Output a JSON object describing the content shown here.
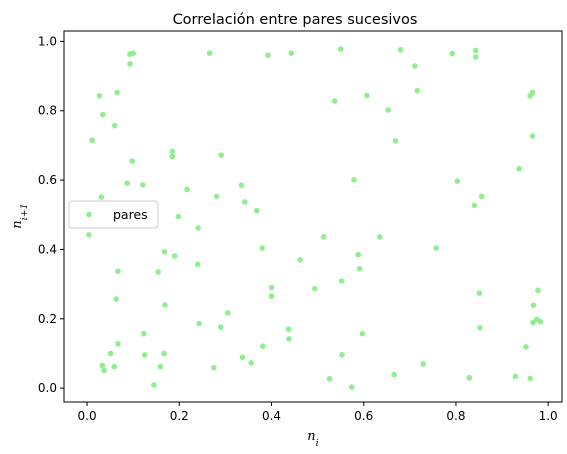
{
  "chart_data": {
    "type": "scatter",
    "title": "Correlación entre pares sucesivos",
    "xlabel": "n_i",
    "ylabel": "n_{i+1}",
    "xlim": [
      -0.05,
      1.03
    ],
    "ylim": [
      -0.04,
      1.03
    ],
    "x_ticks": [
      0.0,
      0.2,
      0.4,
      0.6,
      0.8,
      1.0
    ],
    "y_ticks": [
      0.0,
      0.2,
      0.4,
      0.6,
      0.8,
      1.0
    ],
    "x_tick_labels": [
      "0.0",
      "0.2",
      "0.4",
      "0.6",
      "0.8",
      "1.0"
    ],
    "y_tick_labels": [
      "0.0",
      "0.2",
      "0.4",
      "0.6",
      "0.8",
      "1.0"
    ],
    "grid": false,
    "legend_position": "center-left",
    "series": [
      {
        "name": "pares",
        "color": "#90ee90",
        "points": [
          [
            0.093,
            0.963
          ],
          [
            0.1,
            0.966
          ],
          [
            0.093,
            0.935
          ],
          [
            0.266,
            0.966
          ],
          [
            0.392,
            0.96
          ],
          [
            0.443,
            0.966
          ],
          [
            0.55,
            0.978
          ],
          [
            0.68,
            0.976
          ],
          [
            0.792,
            0.965
          ],
          [
            0.843,
            0.974
          ],
          [
            0.843,
            0.955
          ],
          [
            0.537,
            0.828
          ],
          [
            0.607,
            0.844
          ],
          [
            0.653,
            0.802
          ],
          [
            0.716,
            0.858
          ],
          [
            0.711,
            0.929
          ],
          [
            0.961,
            0.843
          ],
          [
            0.966,
            0.853
          ],
          [
            0.011,
            0.715
          ],
          [
            0.027,
            0.843
          ],
          [
            0.034,
            0.789
          ],
          [
            0.065,
            0.853
          ],
          [
            0.06,
            0.757
          ],
          [
            0.669,
            0.713
          ],
          [
            0.966,
            0.727
          ],
          [
            0.098,
            0.655
          ],
          [
            0.185,
            0.683
          ],
          [
            0.185,
            0.668
          ],
          [
            0.291,
            0.672
          ],
          [
            0.087,
            0.591
          ],
          [
            0.121,
            0.586
          ],
          [
            0.217,
            0.573
          ],
          [
            0.281,
            0.553
          ],
          [
            0.335,
            0.585
          ],
          [
            0.342,
            0.537
          ],
          [
            0.368,
            0.512
          ],
          [
            0.579,
            0.601
          ],
          [
            0.803,
            0.597
          ],
          [
            0.856,
            0.553
          ],
          [
            0.84,
            0.527
          ],
          [
            0.937,
            0.633
          ],
          [
            0.031,
            0.551
          ],
          [
            0.004,
            0.442
          ],
          [
            0.198,
            0.495
          ],
          [
            0.241,
            0.462
          ],
          [
            0.513,
            0.436
          ],
          [
            0.635,
            0.436
          ],
          [
            0.757,
            0.404
          ],
          [
            0.38,
            0.404
          ],
          [
            0.168,
            0.393
          ],
          [
            0.19,
            0.381
          ],
          [
            0.588,
            0.385
          ],
          [
            0.591,
            0.344
          ],
          [
            0.462,
            0.37
          ],
          [
            0.24,
            0.357
          ],
          [
            0.067,
            0.337
          ],
          [
            0.154,
            0.335
          ],
          [
            0.4,
            0.29
          ],
          [
            0.4,
            0.265
          ],
          [
            0.494,
            0.287
          ],
          [
            0.552,
            0.309
          ],
          [
            0.851,
            0.274
          ],
          [
            0.978,
            0.282
          ],
          [
            0.063,
            0.257
          ],
          [
            0.169,
            0.24
          ],
          [
            0.305,
            0.217
          ],
          [
            0.968,
            0.239
          ],
          [
            0.243,
            0.186
          ],
          [
            0.29,
            0.176
          ],
          [
            0.437,
            0.17
          ],
          [
            0.597,
            0.157
          ],
          [
            0.123,
            0.157
          ],
          [
            0.852,
            0.174
          ],
          [
            0.967,
            0.189
          ],
          [
            0.975,
            0.198
          ],
          [
            0.983,
            0.192
          ],
          [
            0.067,
            0.128
          ],
          [
            0.381,
            0.121
          ],
          [
            0.438,
            0.142
          ],
          [
            0.952,
            0.119
          ],
          [
            0.125,
            0.096
          ],
          [
            0.167,
            0.1
          ],
          [
            0.337,
            0.089
          ],
          [
            0.356,
            0.073
          ],
          [
            0.553,
            0.096
          ],
          [
            0.033,
            0.065
          ],
          [
            0.051,
            0.1
          ],
          [
            0.059,
            0.062
          ],
          [
            0.159,
            0.062
          ],
          [
            0.275,
            0.059
          ],
          [
            0.037,
            0.051
          ],
          [
            0.729,
            0.07
          ],
          [
            0.145,
            0.009
          ],
          [
            0.526,
            0.027
          ],
          [
            0.574,
            0.003
          ],
          [
            0.666,
            0.039
          ],
          [
            0.829,
            0.03
          ],
          [
            0.929,
            0.034
          ],
          [
            0.961,
            0.028
          ]
        ]
      }
    ]
  }
}
